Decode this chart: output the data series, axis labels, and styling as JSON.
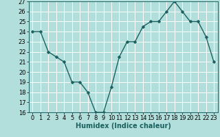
{
  "x": [
    0,
    1,
    2,
    3,
    4,
    5,
    6,
    7,
    8,
    9,
    10,
    11,
    12,
    13,
    14,
    15,
    16,
    17,
    18,
    19,
    20,
    21,
    22,
    23
  ],
  "y": [
    24.0,
    24.0,
    22.0,
    21.5,
    21.0,
    19.0,
    19.0,
    18.0,
    16.0,
    16.0,
    18.5,
    21.5,
    23.0,
    23.0,
    24.5,
    25.0,
    25.0,
    26.0,
    27.0,
    26.0,
    25.0,
    25.0,
    23.5,
    21.0
  ],
  "line_color": "#1a6060",
  "marker_color": "#1a6060",
  "bg_color": "#b2dfdb",
  "grid_color": "#ffffff",
  "xlabel": "Humidex (Indice chaleur)",
  "ylim": [
    16,
    27
  ],
  "xlim_min": -0.5,
  "xlim_max": 23.5,
  "yticks": [
    16,
    17,
    18,
    19,
    20,
    21,
    22,
    23,
    24,
    25,
    26,
    27
  ],
  "xticks": [
    0,
    1,
    2,
    3,
    4,
    5,
    6,
    7,
    8,
    9,
    10,
    11,
    12,
    13,
    14,
    15,
    16,
    17,
    18,
    19,
    20,
    21,
    22,
    23
  ],
  "xlabel_fontsize": 7,
  "tick_fontsize": 6,
  "line_width": 1.0,
  "marker_size": 2.5
}
